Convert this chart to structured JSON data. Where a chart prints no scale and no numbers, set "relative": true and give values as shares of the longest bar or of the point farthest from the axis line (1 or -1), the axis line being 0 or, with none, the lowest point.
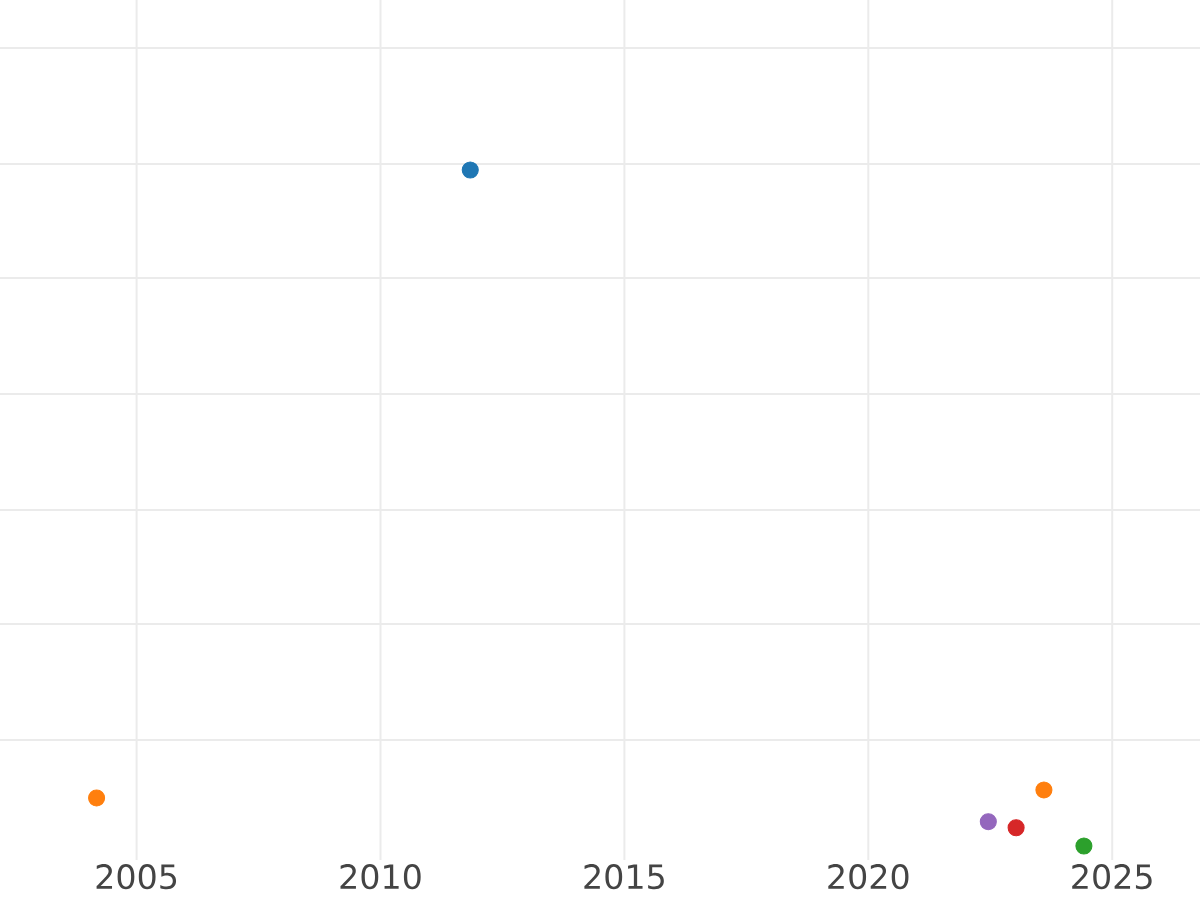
{
  "chart_data": {
    "type": "scatter",
    "relative": true,
    "marker": "circle",
    "grid": true,
    "x": [
      2004.18,
      2011.84,
      2022.46,
      2023.03,
      2023.6,
      2024.42
    ],
    "values": [
      0.071,
      1,
      0.036,
      0.027,
      0.083,
      0
    ],
    "colors": [
      "#ff7f0e",
      "#1f77b4",
      "#9467bd",
      "#d62728",
      "#ff7f0e",
      "#2ca02c"
    ],
    "xlim": [
      2002.2,
      2026.8
    ],
    "xticks": [
      2005,
      2010,
      2015,
      2020,
      2025
    ]
  }
}
